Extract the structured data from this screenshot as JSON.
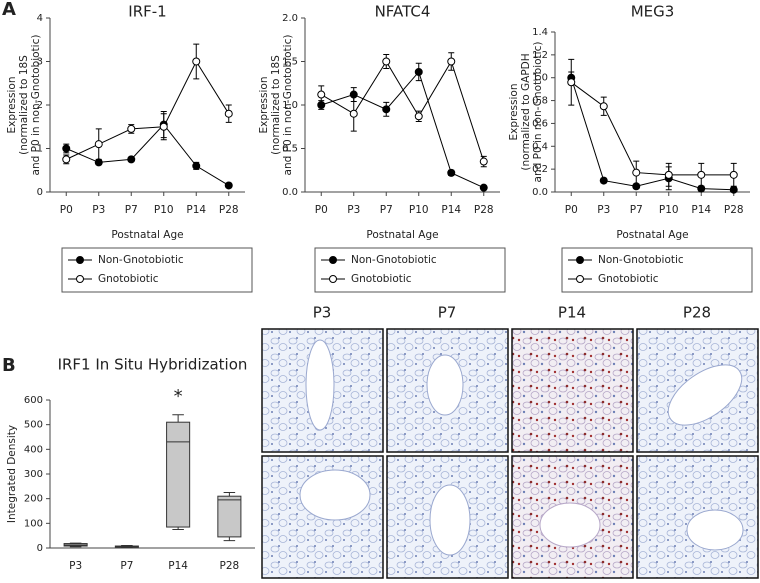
{
  "panels": {
    "a": "A",
    "b": "B"
  },
  "micrographs": {
    "labels": [
      "P3",
      "P7",
      "P14",
      "P28"
    ]
  },
  "chart_data": [
    {
      "type": "line",
      "title": "IRF-1",
      "y_label": [
        "Expression",
        "(normalized to 18S",
        "and P0 in non-Gnotobiotic)"
      ],
      "x_label": "Postnatal Age",
      "categories": [
        "P0",
        "P3",
        "P7",
        "P10",
        "P14",
        "P28"
      ],
      "ylim": [
        0,
        4
      ],
      "yticks": [
        0,
        1,
        2,
        3,
        4
      ],
      "series": [
        {
          "name": "Non-Gnotobiotic",
          "color": "#000000",
          "fill": "#000000",
          "values": [
            1.0,
            0.68,
            0.75,
            1.55,
            0.6,
            0.15
          ],
          "errors": [
            0.1,
            0.05,
            0.05,
            0.3,
            0.08,
            0.05
          ]
        },
        {
          "name": "Gnotobiotic",
          "color": "#000000",
          "fill": "#ffffff",
          "values": [
            0.75,
            1.1,
            1.45,
            1.5,
            3.0,
            1.8
          ],
          "errors": [
            0.1,
            0.35,
            0.1,
            0.3,
            0.4,
            0.2
          ]
        }
      ]
    },
    {
      "type": "line",
      "title": "NFATC4",
      "y_label": [
        "Expression",
        "(normalized to 18S",
        "and P0 in non-Gnotobiotic)"
      ],
      "x_label": "Postnatal Age",
      "categories": [
        "P0",
        "P3",
        "P7",
        "P10",
        "P14",
        "P28"
      ],
      "ylim": [
        0,
        2
      ],
      "yticks": [
        {
          "value": 0,
          "label": "0.0"
        },
        {
          "value": 0.5,
          "label": "0.5"
        },
        {
          "value": 1,
          "label": "1.0"
        },
        {
          "value": 1.5,
          "label": "1.5"
        },
        {
          "value": 2,
          "label": "2.0"
        }
      ],
      "series": [
        {
          "name": "Non-Gnotobiotic",
          "color": "#000000",
          "fill": "#000000",
          "values": [
            1.0,
            1.12,
            0.95,
            1.38,
            0.22,
            0.05
          ],
          "errors": [
            0.05,
            0.08,
            0.08,
            0.1,
            0.03,
            0.02
          ]
        },
        {
          "name": "Gnotobiotic",
          "color": "#000000",
          "fill": "#ffffff",
          "values": [
            1.12,
            0.9,
            1.5,
            0.87,
            1.5,
            0.35
          ],
          "errors": [
            0.1,
            0.2,
            0.08,
            0.06,
            0.1,
            0.06
          ]
        }
      ]
    },
    {
      "type": "line",
      "title": "MEG3",
      "y_label": [
        "Expression",
        "(normalized to GAPDH",
        "and P0 in non-Gnotobiotic)"
      ],
      "x_label": "Postnatal Age",
      "categories": [
        "P0",
        "P3",
        "P7",
        "P10",
        "P14",
        "P28"
      ],
      "ylim": [
        0,
        1.4
      ],
      "yticks": [
        {
          "value": 0,
          "label": "0.0"
        },
        0.2,
        0.4,
        0.6,
        0.8,
        {
          "value": 1,
          "label": "1.0"
        },
        1.2,
        1.4
      ],
      "series": [
        {
          "name": "Non-Gnotobiotic",
          "color": "#000000",
          "fill": "#000000",
          "values": [
            1.0,
            0.1,
            0.05,
            0.12,
            0.03,
            0.02
          ],
          "errors": [
            0.05,
            0.02,
            0.02,
            0.1,
            0.02,
            0.02
          ]
        },
        {
          "name": "Gnotobiotic",
          "color": "#000000",
          "fill": "#ffffff",
          "values": [
            0.96,
            0.75,
            0.17,
            0.15,
            0.15,
            0.15
          ],
          "errors": [
            0.2,
            0.08,
            0.1,
            0.1,
            0.1,
            0.1
          ]
        }
      ]
    },
    {
      "type": "box",
      "title": "IRF1 In Situ Hybridization",
      "y_label": [
        "Integrated Density"
      ],
      "categories": [
        "P3",
        "P7",
        "P14",
        "P28"
      ],
      "ylim": [
        0,
        600
      ],
      "yticks": [
        0,
        100,
        200,
        300,
        400,
        500,
        600
      ],
      "color": "#c8c8c8",
      "annotation": "*",
      "boxes": [
        {
          "min": 5,
          "q1": 8,
          "median": 12,
          "q3": 18,
          "max": 20
        },
        {
          "min": 2,
          "q1": 4,
          "median": 6,
          "q3": 8,
          "max": 10
        },
        {
          "min": 75,
          "q1": 85,
          "median": 430,
          "q3": 510,
          "max": 540
        },
        {
          "min": 30,
          "q1": 45,
          "median": 195,
          "q3": 210,
          "max": 225
        }
      ]
    }
  ]
}
